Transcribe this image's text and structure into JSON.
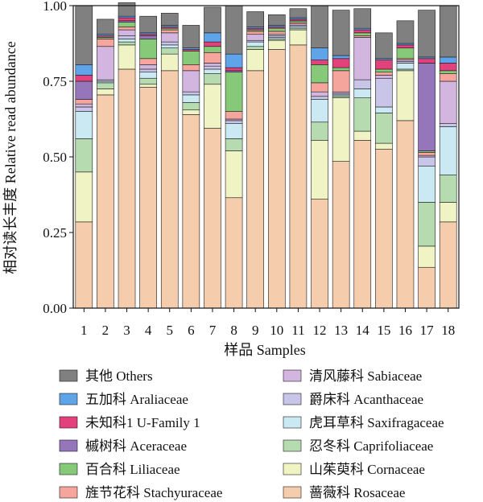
{
  "chart_data": {
    "type": "stacked-bar",
    "xlabel": "样品 Samples",
    "ylabel": "相对读长丰度 Relative read abundance",
    "ylim": [
      0,
      1
    ],
    "yticks": [
      "0.00",
      "0.25",
      "0.50",
      "0.75",
      "1.00"
    ],
    "categories": [
      "1",
      "2",
      "3",
      "4",
      "5",
      "6",
      "7",
      "8",
      "9",
      "10",
      "11",
      "12",
      "13",
      "14",
      "15",
      "16",
      "17",
      "18"
    ],
    "series": [
      {
        "name": "蔷薇科 Rosaceae",
        "color": "#F5CDAD",
        "values": [
          0.285,
          0.705,
          0.79,
          0.73,
          0.785,
          0.64,
          0.595,
          0.365,
          0.785,
          0.855,
          0.87,
          0.36,
          0.485,
          0.555,
          0.525,
          0.62,
          0.135,
          0.285
        ]
      },
      {
        "name": "山茱萸科 Cornaceae",
        "color": "#F0F3C4",
        "values": [
          0.165,
          0.02,
          0.08,
          0.01,
          0.055,
          0.015,
          0.145,
          0.155,
          0.07,
          0.03,
          0.05,
          0.195,
          0.21,
          0.03,
          0.02,
          0.165,
          0.07,
          0.065
        ]
      },
      {
        "name": "忍冬科 Caprifoliaceae",
        "color": "#B6DBB0",
        "values": [
          0.11,
          0.02,
          0.01,
          0.02,
          0.02,
          0.025,
          0.035,
          0.04,
          0.01,
          0.005,
          0.005,
          0.06,
          0.005,
          0.11,
          0.1,
          0.005,
          0.145,
          0.09
        ]
      },
      {
        "name": "虎耳草科 Saxifragaceae",
        "color": "#CBE9F3",
        "values": [
          0.09,
          0.005,
          0.01,
          0.02,
          0.01,
          0.025,
          0.015,
          0.05,
          0.015,
          0.005,
          0.005,
          0.075,
          0.005,
          0.03,
          0.02,
          0.02,
          0.12,
          0.16
        ]
      },
      {
        "name": "爵床科 Acanthaceae",
        "color": "#C9C5E8",
        "values": [
          0.015,
          0.005,
          0.01,
          0.01,
          0.01,
          0.01,
          0.01,
          0.01,
          0.005,
          0.005,
          0.005,
          0.01,
          0.005,
          0.03,
          0.095,
          0.005,
          0.03,
          0.01
        ]
      },
      {
        "name": "清风藤科 Sabiaceae",
        "color": "#D3B6DF",
        "values": [
          0.01,
          0.11,
          0.02,
          0.015,
          0.03,
          0.07,
          0.01,
          0.005,
          0.02,
          0.005,
          0.005,
          0.015,
          0.005,
          0.14,
          0.01,
          0.005,
          0.005,
          0.14
        ]
      },
      {
        "name": "旌节花科 Stachyuraceae",
        "color": "#F6A59D",
        "values": [
          0.015,
          0.025,
          0.01,
          0.02,
          0.01,
          0.02,
          0.035,
          0.025,
          0.01,
          0.01,
          0.005,
          0.03,
          0.07,
          0.005,
          0.01,
          0.005,
          0.01,
          0.025
        ]
      },
      {
        "name": "百合科 Liliaceae",
        "color": "#86C978",
        "values": [
          0.0,
          0.005,
          0.015,
          0.065,
          0.005,
          0.045,
          0.02,
          0.13,
          0.005,
          0.01,
          0.005,
          0.06,
          0.01,
          0.01,
          0.01,
          0.035,
          0.005,
          0.01
        ]
      },
      {
        "name": "槭树科 Aceraceae",
        "color": "#9676BB",
        "values": [
          0.06,
          0.0,
          0.005,
          0.01,
          0.0,
          0.0,
          0.0,
          0.005,
          0.0,
          0.0,
          0.0,
          0.0,
          0.0,
          0.0,
          0.0,
          0.0,
          0.29,
          0.0
        ]
      },
      {
        "name": "未知科1 U-Family 1",
        "color": "#E2417C",
        "values": [
          0.02,
          0.005,
          0.01,
          0.005,
          0.005,
          0.005,
          0.015,
          0.01,
          0.005,
          0.005,
          0.005,
          0.015,
          0.03,
          0.01,
          0.03,
          0.01,
          0.015,
          0.025
        ]
      },
      {
        "name": "五加科 Araliaceae",
        "color": "#5FA3E8",
        "values": [
          0.035,
          0.005,
          0.005,
          0.005,
          0.005,
          0.005,
          0.03,
          0.045,
          0.005,
          0.005,
          0.005,
          0.04,
          0.01,
          0.005,
          0.005,
          0.005,
          0.005,
          0.02
        ]
      },
      {
        "name": "其他 Others",
        "color": "#808080",
        "values": [
          0.195,
          0.05,
          0.045,
          0.055,
          0.04,
          0.075,
          0.085,
          0.16,
          0.05,
          0.035,
          0.03,
          0.14,
          0.15,
          0.065,
          0.085,
          0.075,
          0.155,
          0.17
        ]
      }
    ],
    "legend": {
      "left": [
        "其他 Others",
        "五加科 Araliaceae",
        "未知科1 U-Family 1",
        "槭树科 Aceraceae",
        "百合科 Liliaceae",
        "旌节花科 Stachyuraceae"
      ],
      "right": [
        "清风藤科 Sabiaceae",
        "爵床科 Acanthaceae",
        "虎耳草科 Saxifragaceae",
        "忍冬科 Caprifoliaceae",
        "山茱萸科 Cornaceae",
        "蔷薇科 Rosaceae"
      ],
      "placement": "bottom, two columns"
    }
  }
}
